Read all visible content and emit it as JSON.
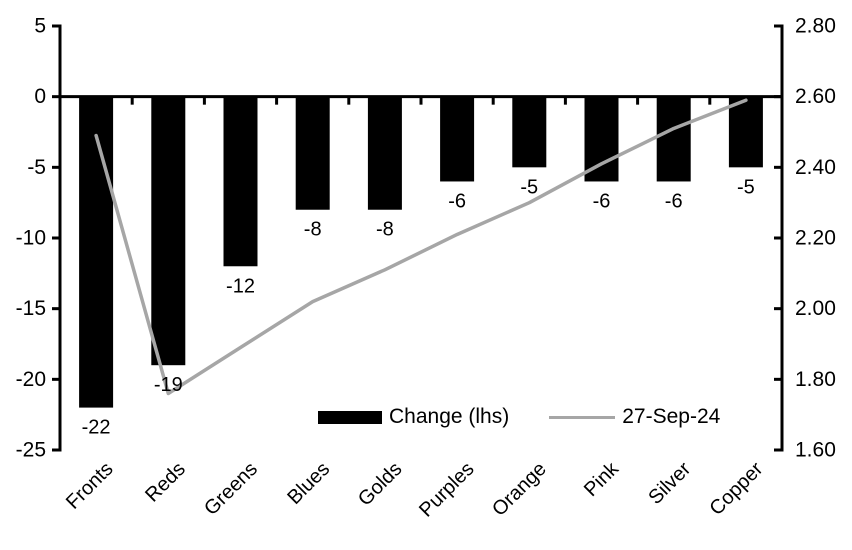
{
  "chart_data": {
    "type": "bar",
    "subtype": "combo-bar-line-dual-axis",
    "categories": [
      "Fronts",
      "Reds",
      "Greens",
      "Blues",
      "Golds",
      "Purples",
      "Orange",
      "Pink",
      "Silver",
      "Copper"
    ],
    "series": [
      {
        "name": "Change (lhs)",
        "type": "bar",
        "axis": "left",
        "color": "#000000",
        "values": [
          -22,
          -19,
          -12,
          -8,
          -8,
          -6,
          -5,
          -6,
          -6,
          -5
        ],
        "data_labels": [
          "-22",
          "-19",
          "-12",
          "-8",
          "-8",
          "-6",
          "-5",
          "-6",
          "-6",
          "-5"
        ]
      },
      {
        "name": "27-Sep-24",
        "type": "line",
        "axis": "right",
        "color": "#a6a6a6",
        "values": [
          2.49,
          1.76,
          1.89,
          2.02,
          2.11,
          2.21,
          2.3,
          2.41,
          2.51,
          2.59
        ]
      }
    ],
    "left_axis": {
      "min": -25,
      "max": 5,
      "tick_labels": [
        "5",
        "0",
        "-5",
        "-10",
        "-15",
        "-20",
        "-25"
      ],
      "tick_values": [
        5,
        0,
        -5,
        -10,
        -15,
        -20,
        -25
      ]
    },
    "right_axis": {
      "min": 1.6,
      "max": 2.8,
      "tick_labels": [
        "2.80",
        "2.60",
        "2.40",
        "2.20",
        "2.00",
        "1.80",
        "1.60"
      ],
      "tick_values": [
        2.8,
        2.6,
        2.4,
        2.2,
        2.0,
        1.8,
        1.6
      ]
    },
    "title": "",
    "xlabel": "",
    "ylabel": "",
    "grid": false,
    "legend_position": "inside-bottom",
    "legend": [
      "Change (lhs)",
      "27-Sep-24"
    ]
  },
  "colors": {
    "bar": "#000000",
    "line": "#a6a6a6",
    "axis": "#000000",
    "background": "#ffffff"
  }
}
